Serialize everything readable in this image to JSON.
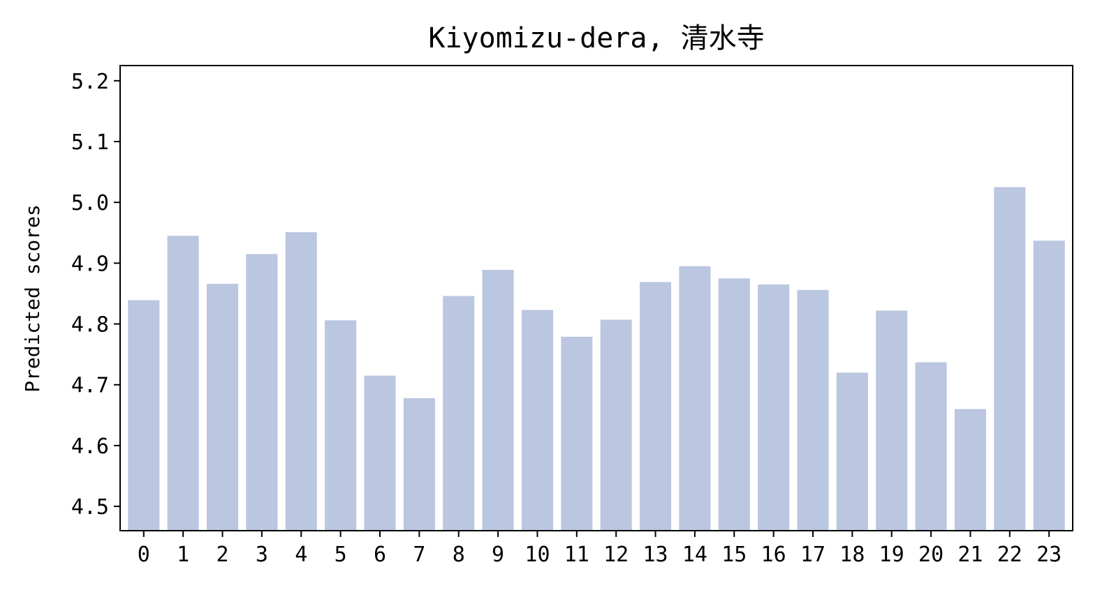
{
  "chart_data": {
    "type": "bar",
    "title": "Kiyomizu-dera, 清水寺",
    "xlabel": "",
    "ylabel": "Predicted scores",
    "categories": [
      "0",
      "1",
      "2",
      "3",
      "4",
      "5",
      "6",
      "7",
      "8",
      "9",
      "10",
      "11",
      "12",
      "13",
      "14",
      "15",
      "16",
      "17",
      "18",
      "19",
      "20",
      "21",
      "22",
      "23"
    ],
    "values": [
      4.839,
      4.945,
      4.866,
      4.915,
      4.951,
      4.806,
      4.715,
      4.678,
      4.846,
      4.889,
      4.823,
      4.779,
      4.807,
      4.869,
      4.895,
      4.875,
      4.865,
      4.856,
      4.72,
      4.822,
      4.737,
      4.66,
      5.025,
      4.937
    ],
    "ylim": [
      4.46,
      5.225
    ],
    "yticks": [
      "4.5",
      "4.6",
      "4.7",
      "4.8",
      "4.9",
      "5.0",
      "5.1",
      "5.2"
    ],
    "bar_color": "#bbc6e1",
    "grid": false,
    "legend": "none"
  }
}
